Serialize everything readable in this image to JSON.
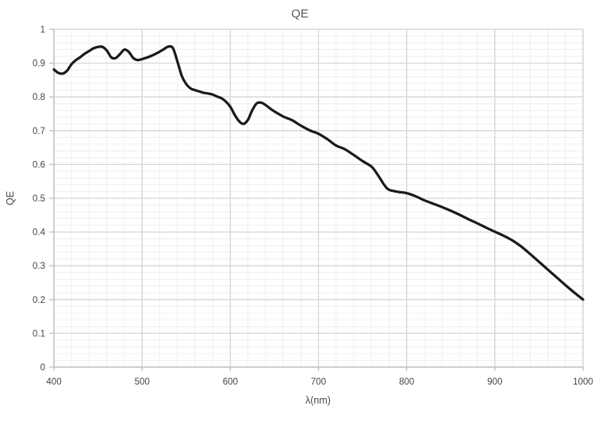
{
  "chart_data": {
    "type": "line",
    "title": "QE",
    "xlabel": "λ(nm)",
    "ylabel": "QE",
    "xlim": [
      400,
      1000
    ],
    "ylim": [
      0,
      1
    ],
    "x_major_step": 100,
    "x_minor_step": 20,
    "y_major_step": 0.1,
    "y_minor_step": 0.02,
    "x_ticks": [
      "400",
      "500",
      "600",
      "700",
      "800",
      "900",
      "1000"
    ],
    "y_ticks": [
      "0",
      "0.1",
      "0.2",
      "0.3",
      "0.4",
      "0.5",
      "0.6",
      "0.7",
      "0.8",
      "0.9",
      "1"
    ],
    "grid": "major and minor, both axes",
    "legend": "none",
    "colors": {
      "line": "#1a1a1a",
      "major_grid": "#d6d6d6",
      "minor_grid": "#efefef",
      "axis_line": "#bfbfbf",
      "text": "#595959"
    },
    "line_width": 3.2,
    "series": [
      {
        "name": "QE",
        "x": [
          400,
          405,
          410,
          415,
          420,
          425,
          430,
          435,
          440,
          445,
          450,
          455,
          460,
          465,
          470,
          475,
          480,
          485,
          490,
          495,
          500,
          505,
          510,
          515,
          520,
          525,
          530,
          535,
          540,
          545,
          550,
          555,
          560,
          565,
          570,
          575,
          580,
          585,
          590,
          595,
          600,
          605,
          610,
          615,
          620,
          625,
          630,
          635,
          640,
          645,
          650,
          660,
          670,
          680,
          690,
          700,
          710,
          720,
          730,
          740,
          750,
          760,
          765,
          770,
          775,
          780,
          790,
          800,
          810,
          820,
          830,
          840,
          850,
          860,
          870,
          880,
          890,
          900,
          910,
          920,
          930,
          940,
          950,
          960,
          970,
          980,
          990,
          1000
        ],
        "y": [
          0.881,
          0.871,
          0.869,
          0.878,
          0.897,
          0.909,
          0.918,
          0.928,
          0.936,
          0.944,
          0.948,
          0.948,
          0.937,
          0.917,
          0.915,
          0.927,
          0.94,
          0.933,
          0.915,
          0.909,
          0.912,
          0.916,
          0.921,
          0.927,
          0.934,
          0.942,
          0.949,
          0.944,
          0.905,
          0.862,
          0.838,
          0.825,
          0.82,
          0.816,
          0.812,
          0.81,
          0.807,
          0.801,
          0.796,
          0.786,
          0.771,
          0.747,
          0.728,
          0.72,
          0.732,
          0.761,
          0.781,
          0.783,
          0.776,
          0.766,
          0.757,
          0.742,
          0.731,
          0.715,
          0.701,
          0.691,
          0.675,
          0.656,
          0.645,
          0.628,
          0.61,
          0.594,
          0.578,
          0.558,
          0.538,
          0.525,
          0.519,
          0.515,
          0.506,
          0.494,
          0.484,
          0.474,
          0.463,
          0.451,
          0.438,
          0.426,
          0.413,
          0.401,
          0.389,
          0.375,
          0.357,
          0.335,
          0.312,
          0.289,
          0.266,
          0.243,
          0.221,
          0.2
        ]
      }
    ]
  }
}
